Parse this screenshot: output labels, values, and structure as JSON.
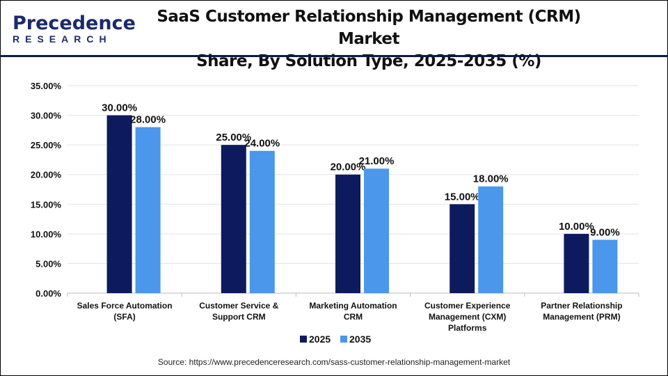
{
  "logo": {
    "line1": "Precedence",
    "line2": "RESEARCH"
  },
  "header": {
    "title_line1": "SaaS Customer Relationship Management (CRM) Market",
    "title_line2": "Share, By Solution Type, 2025-2035 (%)"
  },
  "source": "Source: https://www.precedenceresearch.com/sass-customer-relationship-management-market",
  "chart_data": {
    "type": "bar",
    "title": "SaaS Customer Relationship Management (CRM) Market Share, By Solution Type, 2025-2035 (%)",
    "categories": [
      [
        "Sales Force Automation",
        "(SFA)"
      ],
      [
        "Customer Service &",
        "Support CRM"
      ],
      [
        "Marketing Automation",
        "CRM"
      ],
      [
        "Customer Experience",
        "Management (CXM)",
        "Platforms"
      ],
      [
        "Partner Relationship",
        "Management (PRM)"
      ]
    ],
    "series": [
      {
        "name": "2025",
        "color": "#0d1b5e",
        "values": [
          30,
          25,
          20,
          15,
          10
        ],
        "labels": [
          "30.00%",
          "25.00%",
          "20.00%",
          "15.00%",
          "10.00%"
        ]
      },
      {
        "name": "2035",
        "color": "#4a97ec",
        "values": [
          28,
          24,
          21,
          18,
          9
        ],
        "labels": [
          "28.00%",
          "24.00%",
          "21.00%",
          "18.00%",
          "9.00%"
        ]
      }
    ],
    "ylim": [
      0,
      35
    ],
    "yticks": [
      "0.00%",
      "5.00%",
      "10.00%",
      "15.00%",
      "20.00%",
      "25.00%",
      "30.00%",
      "35.00%"
    ],
    "grid": true,
    "legend": "bottom"
  }
}
